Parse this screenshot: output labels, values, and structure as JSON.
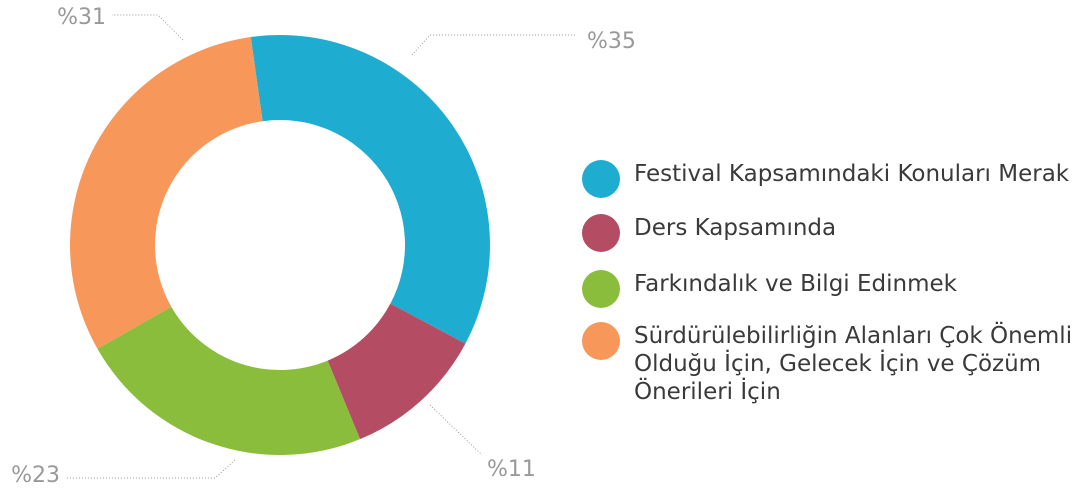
{
  "chart_data": {
    "type": "donut",
    "series": [
      {
        "name": "Festival Kapsamındaki Konuları Merak",
        "color": "#1eadd1",
        "values": [
          35
        ],
        "value_labels": [
          "%35"
        ]
      },
      {
        "name": "Ders Kapsamında",
        "color": "#b44c64",
        "values": [
          11
        ],
        "value_labels": [
          "%11"
        ]
      },
      {
        "name": "Farkındalık ve Bilgi Edinmek",
        "color": "#8bbd3c",
        "values": [
          23
        ],
        "value_labels": [
          "%23"
        ]
      },
      {
        "name": "Sürdürülebilirliğin Alanları Çok Önemli Olduğu İçin, Gelecek İçin ve  Çözüm Önerileri İçin",
        "color": "#f7985a",
        "values": [
          31
        ],
        "value_labels": [
          "%31"
        ]
      }
    ]
  }
}
